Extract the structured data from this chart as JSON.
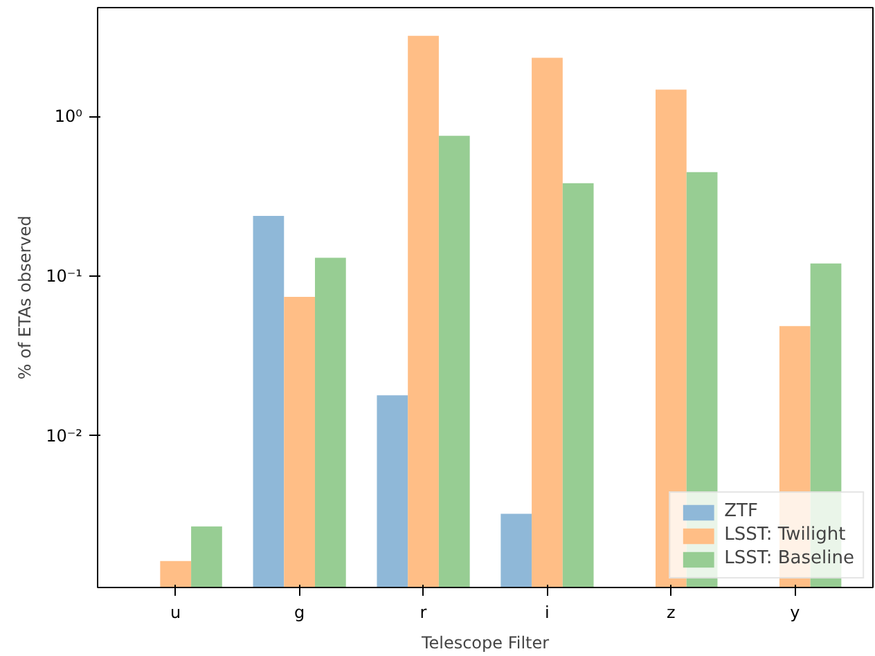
{
  "chart_data": {
    "type": "bar",
    "xlabel": "Telescope Filter",
    "ylabel": "% of ETAs observed",
    "categories": [
      "u",
      "g",
      "r",
      "i",
      "z",
      "y"
    ],
    "series": [
      {
        "name": "ZTF",
        "color": "#8fb8d8",
        "values": [
          null,
          0.238,
          0.0179,
          0.00324,
          null,
          null
        ]
      },
      {
        "name": "LSST: Twilight",
        "color": "#ffbe86",
        "values": [
          0.00164,
          0.074,
          3.2,
          2.33,
          1.47,
          0.0486
        ]
      },
      {
        "name": "LSST: Baseline",
        "color": "#97cd93",
        "values": [
          0.0027,
          0.13,
          0.755,
          0.381,
          0.448,
          0.12
        ]
      }
    ],
    "log": "y",
    "ylim": [
      0.00112,
      4.8
    ],
    "yticks": [
      {
        "value": 0.01,
        "label": "10⁻²"
      },
      {
        "value": 0.1,
        "label": "10⁻¹"
      },
      {
        "value": 1,
        "label": "10⁰"
      }
    ],
    "grid": false,
    "legend": "bottom right"
  }
}
